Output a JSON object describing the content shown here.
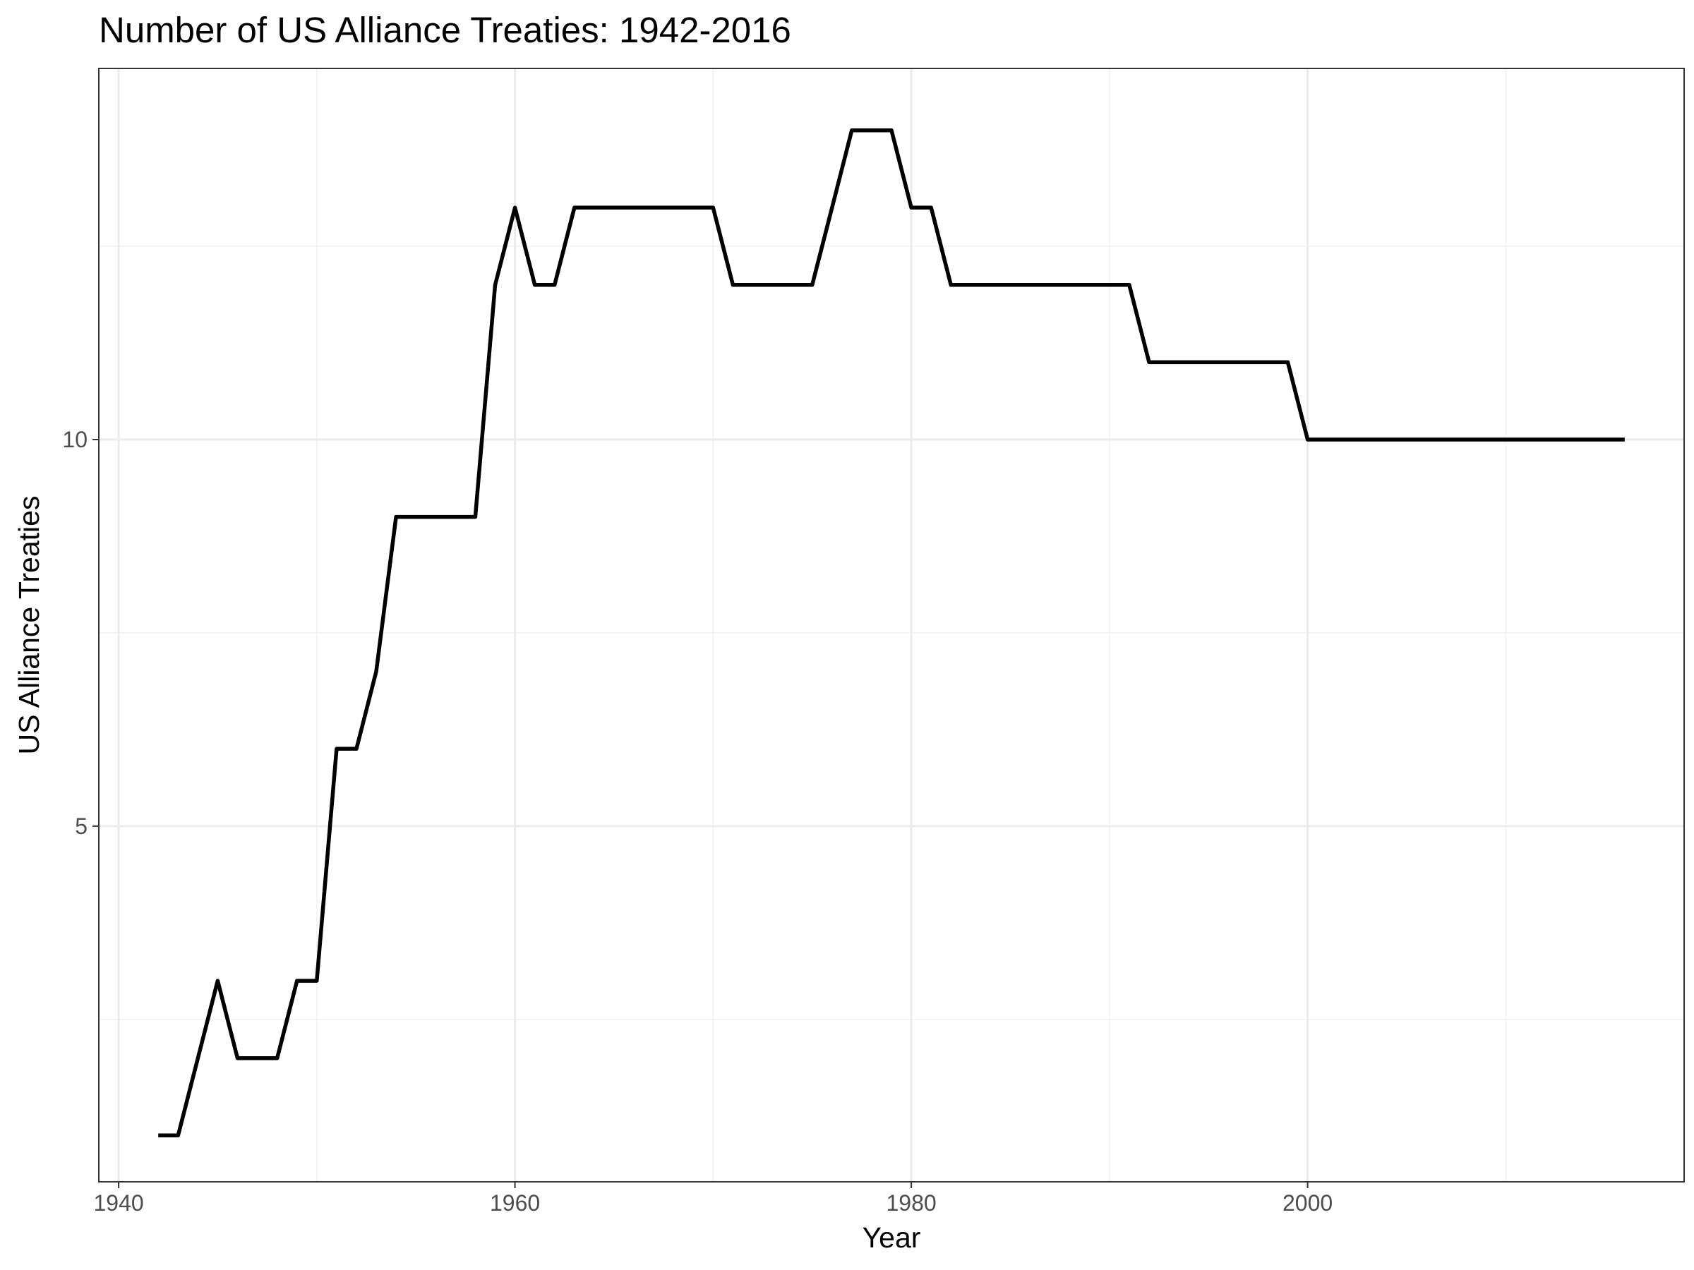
{
  "chart_data": {
    "type": "line",
    "title": "Number of US Alliance Treaties: 1942-2016",
    "xlabel": "Year",
    "ylabel": "US Alliance Treaties",
    "xlim": [
      1939,
      2019
    ],
    "ylim": [
      0.4,
      14.8
    ],
    "x_ticks": [
      1940,
      1960,
      1980,
      2000
    ],
    "x_minor_ticks": [
      1950,
      1970,
      1990,
      2010
    ],
    "y_ticks": [
      5,
      10
    ],
    "y_minor_ticks": [
      2.5,
      7.5,
      12.5
    ],
    "grid": true,
    "legend": "none",
    "line_color": "#000000",
    "series": [
      {
        "x": [
          1942,
          1943,
          1944,
          1945,
          1946,
          1947,
          1948,
          1949,
          1950,
          1951,
          1952,
          1953,
          1954,
          1955,
          1956,
          1957,
          1958,
          1959,
          1960,
          1961,
          1962,
          1963,
          1964,
          1965,
          1966,
          1967,
          1968,
          1969,
          1970,
          1971,
          1972,
          1973,
          1974,
          1975,
          1976,
          1977,
          1978,
          1979,
          1980,
          1981,
          1982,
          1983,
          1984,
          1985,
          1986,
          1987,
          1988,
          1989,
          1990,
          1991,
          1992,
          1993,
          1994,
          1995,
          1996,
          1997,
          1998,
          1999,
          2000,
          2001,
          2002,
          2003,
          2004,
          2005,
          2006,
          2007,
          2008,
          2009,
          2010,
          2011,
          2012,
          2013,
          2014,
          2015,
          2016
        ],
        "y": [
          1,
          1,
          2,
          3,
          2,
          2,
          2,
          3,
          3,
          6,
          6,
          7,
          9,
          9,
          9,
          9,
          9,
          12,
          13,
          12,
          12,
          13,
          13,
          13,
          13,
          13,
          13,
          13,
          13,
          12,
          12,
          12,
          12,
          12,
          13,
          14,
          14,
          14,
          13,
          13,
          12,
          12,
          12,
          12,
          12,
          12,
          12,
          12,
          12,
          12,
          11,
          11,
          11,
          11,
          11,
          11,
          11,
          11,
          10,
          10,
          10,
          10,
          10,
          10,
          10,
          10,
          10,
          10,
          10,
          10,
          10,
          10,
          10,
          10,
          10
        ]
      }
    ]
  }
}
